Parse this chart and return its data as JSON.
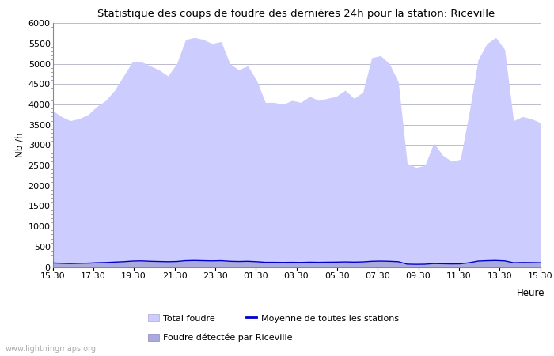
{
  "title": "Statistique des coups de foudre des dernières 24h pour la station: Riceville",
  "ylabel": "Nb /h",
  "xlabel": "Heure",
  "ylim": [
    0,
    6000
  ],
  "yticks": [
    0,
    500,
    1000,
    1500,
    2000,
    2500,
    3000,
    3500,
    4000,
    4500,
    5000,
    5500,
    6000
  ],
  "xtick_labels": [
    "15:30",
    "17:30",
    "19:30",
    "21:30",
    "23:30",
    "01:30",
    "03:30",
    "05:30",
    "07:30",
    "09:30",
    "11:30",
    "13:30",
    "15:30"
  ],
  "xtick_positions": [
    0,
    4,
    8,
    12,
    16,
    20,
    24,
    28,
    32,
    36,
    40,
    44,
    48
  ],
  "grid_color": "#bbbbcc",
  "fill_total_color": "#ccccff",
  "fill_total_edge": "#aaaacc",
  "fill_riceville_color": "#aaaadd",
  "fill_riceville_edge": "#8888bb",
  "line_moyenne_color": "#0000cc",
  "watermark": "www.lightningmaps.org",
  "legend_total": "Total foudre",
  "legend_moyenne": "Moyenne de toutes les stations",
  "legend_riceville": "Foudre détectée par Riceville",
  "total_foudre": [
    3850,
    3700,
    3600,
    3650,
    3750,
    3950,
    4100,
    4350,
    4700,
    5050,
    5050,
    4950,
    4850,
    4700,
    5000,
    5600,
    5650,
    5600,
    5500,
    5550,
    5000,
    4850,
    4950,
    4600,
    4050,
    4050,
    4000,
    4100,
    4050,
    4200,
    4100,
    4150,
    4200,
    4350,
    4150,
    4300,
    5150,
    5200,
    5000,
    4550,
    2550,
    2450,
    2500,
    3050,
    2750,
    2600,
    2650,
    3800,
    5100,
    5500,
    5650,
    5350,
    3600,
    3700,
    3650,
    3550
  ],
  "riceville": [
    100,
    90,
    85,
    90,
    95,
    105,
    110,
    120,
    130,
    145,
    150,
    140,
    135,
    130,
    135,
    155,
    160,
    155,
    150,
    155,
    140,
    135,
    140,
    130,
    115,
    115,
    112,
    115,
    112,
    118,
    115,
    118,
    120,
    125,
    120,
    125,
    140,
    145,
    140,
    130,
    70,
    65,
    68,
    85,
    80,
    76,
    78,
    105,
    145,
    155,
    160,
    150,
    105,
    110,
    108,
    105
  ],
  "moyenne": [
    100,
    90,
    85,
    90,
    95,
    105,
    110,
    120,
    130,
    145,
    150,
    140,
    135,
    130,
    135,
    155,
    160,
    155,
    150,
    155,
    140,
    135,
    140,
    130,
    115,
    115,
    112,
    115,
    112,
    118,
    115,
    118,
    120,
    125,
    120,
    125,
    140,
    145,
    140,
    130,
    70,
    65,
    68,
    85,
    80,
    76,
    78,
    105,
    145,
    155,
    160,
    150,
    105,
    110,
    108,
    105
  ],
  "n_points": 56
}
